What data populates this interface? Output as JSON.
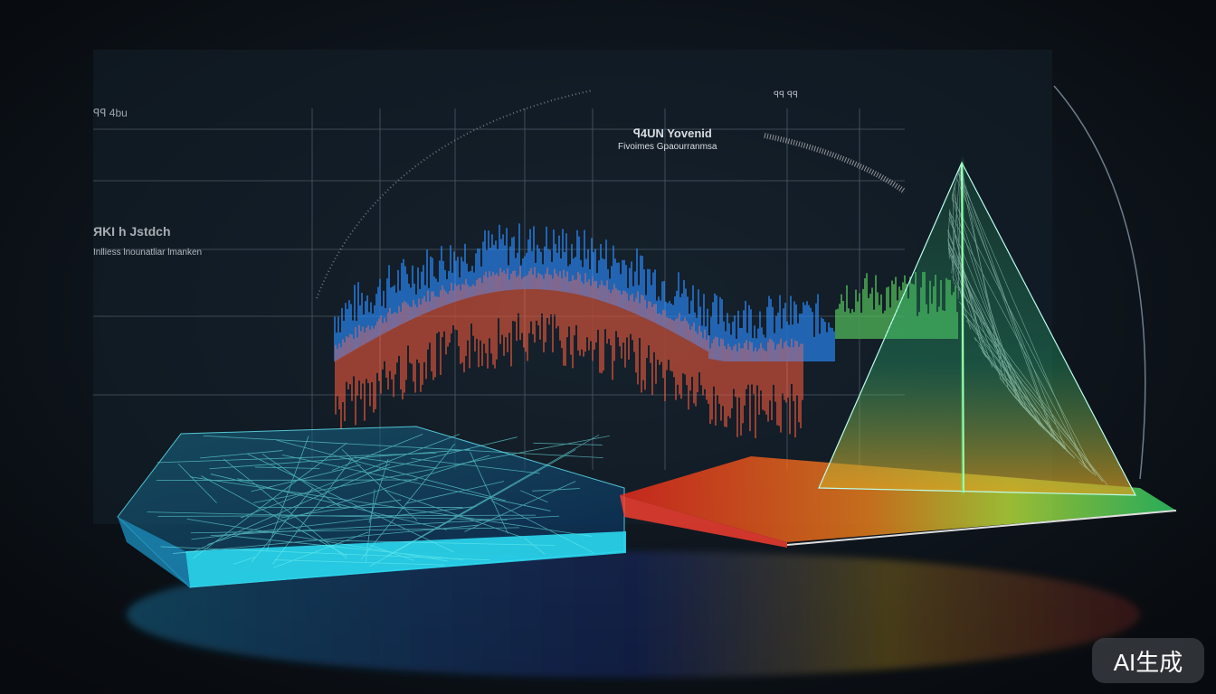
{
  "labels": {
    "main_title": "ꟼ4UN Yovenid",
    "main_subtitle": "Fivoimes Gpaourranmsa",
    "left_title": "ЯKI h Jstdch",
    "left_subtitle": "Inlliess lnounatliar lmanken",
    "left_top": "ꟼꟼ 4bu",
    "arc_label": "ꟼꟼ ꟼꟼ"
  },
  "watermark": "AI生成",
  "colors": {
    "background": "#0b1118",
    "panel": "#14202b",
    "blue": "#2a8cff",
    "orange": "#e0553a",
    "cyan": "#34d8f0",
    "green": "#3cff7a",
    "red": "#ff3a2a"
  }
}
